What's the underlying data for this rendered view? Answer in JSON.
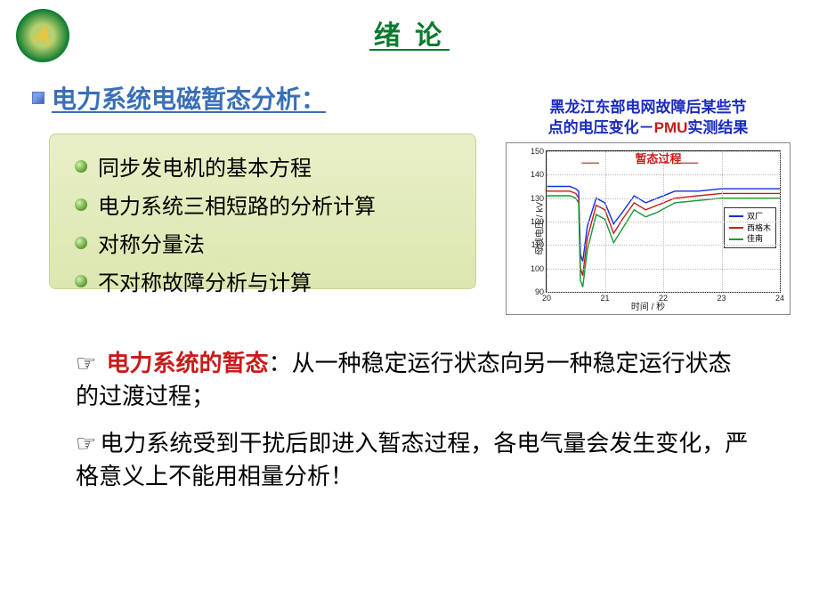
{
  "title": {
    "text": "绪 论",
    "color": "#0b7a2e"
  },
  "section_heading": {
    "text": "电力系统电磁暂态分析：",
    "color": "#3b6fb5"
  },
  "list": {
    "items": [
      "同步发电机的基本方程",
      "电力系统三相短路的分析计算",
      "对称分量法",
      "不对称故障分析与计算"
    ]
  },
  "chart": {
    "title_line1": "黑龙江东部电网故障后某些节",
    "title_line2_pre": "点的电压变化－",
    "title_line2_key": "PMU",
    "title_line2_post": "实测结果",
    "title_color_main": "#1a2bbf",
    "title_color_key": "#c71b1b",
    "annotation": "暂态过程",
    "annotation_color": "#c71b1b",
    "xlabel": "时间 / 秒",
    "ylabel": "母线电压 / kV",
    "xlim": [
      20,
      24
    ],
    "ylim": [
      90,
      150
    ],
    "yticks": [
      90,
      100,
      110,
      120,
      130,
      140,
      150
    ],
    "xticks": [
      20,
      21,
      22,
      23,
      24
    ],
    "grid_color": "#bbbbbb",
    "series": [
      {
        "name": "双厂",
        "color": "#1030d8",
        "points": [
          [
            20,
            135
          ],
          [
            20.4,
            135
          ],
          [
            20.5,
            134
          ],
          [
            20.55,
            133
          ],
          [
            20.58,
            106
          ],
          [
            20.62,
            103
          ],
          [
            20.7,
            118
          ],
          [
            20.85,
            130
          ],
          [
            21.0,
            128
          ],
          [
            21.15,
            119
          ],
          [
            21.3,
            124
          ],
          [
            21.5,
            131
          ],
          [
            21.7,
            128
          ],
          [
            21.9,
            130
          ],
          [
            22.2,
            133
          ],
          [
            22.6,
            133
          ],
          [
            23.0,
            134
          ],
          [
            23.5,
            134
          ],
          [
            24,
            134
          ]
        ]
      },
      {
        "name": "西格木",
        "color": "#c71b1b",
        "points": [
          [
            20,
            133
          ],
          [
            20.4,
            133
          ],
          [
            20.5,
            132
          ],
          [
            20.55,
            130
          ],
          [
            20.58,
            100
          ],
          [
            20.62,
            97
          ],
          [
            20.7,
            113
          ],
          [
            20.85,
            127
          ],
          [
            21.0,
            125
          ],
          [
            21.15,
            115
          ],
          [
            21.3,
            121
          ],
          [
            21.5,
            128
          ],
          [
            21.7,
            125
          ],
          [
            21.9,
            127
          ],
          [
            22.2,
            130
          ],
          [
            22.6,
            131
          ],
          [
            23.0,
            132
          ],
          [
            23.5,
            132
          ],
          [
            24,
            132
          ]
        ]
      },
      {
        "name": "佳南",
        "color": "#0f9a2e",
        "points": [
          [
            20,
            131
          ],
          [
            20.4,
            131
          ],
          [
            20.5,
            130
          ],
          [
            20.55,
            128
          ],
          [
            20.58,
            95
          ],
          [
            20.62,
            92
          ],
          [
            20.7,
            108
          ],
          [
            20.85,
            123
          ],
          [
            21.0,
            121
          ],
          [
            21.15,
            111
          ],
          [
            21.3,
            117
          ],
          [
            21.5,
            125
          ],
          [
            21.7,
            122
          ],
          [
            21.9,
            124
          ],
          [
            22.2,
            128
          ],
          [
            22.6,
            129
          ],
          [
            23.0,
            130
          ],
          [
            23.5,
            130
          ],
          [
            24,
            130
          ]
        ]
      }
    ]
  },
  "paragraph1": {
    "pointer": "☞",
    "key": "电力系统的暂态",
    "key_color": "#c71b1b",
    "rest": "：从一种稳定运行状态向另一种稳定运行状态的过渡过程；"
  },
  "paragraph2": {
    "pointer": "☞",
    "text": "电力系统受到干扰后即进入暂态过程，各电气量会发生变化，严格意义上不能用相量分析！"
  },
  "colors": {
    "green_dark": "#0b7a2e",
    "box_bg": "#e3ecc0"
  }
}
